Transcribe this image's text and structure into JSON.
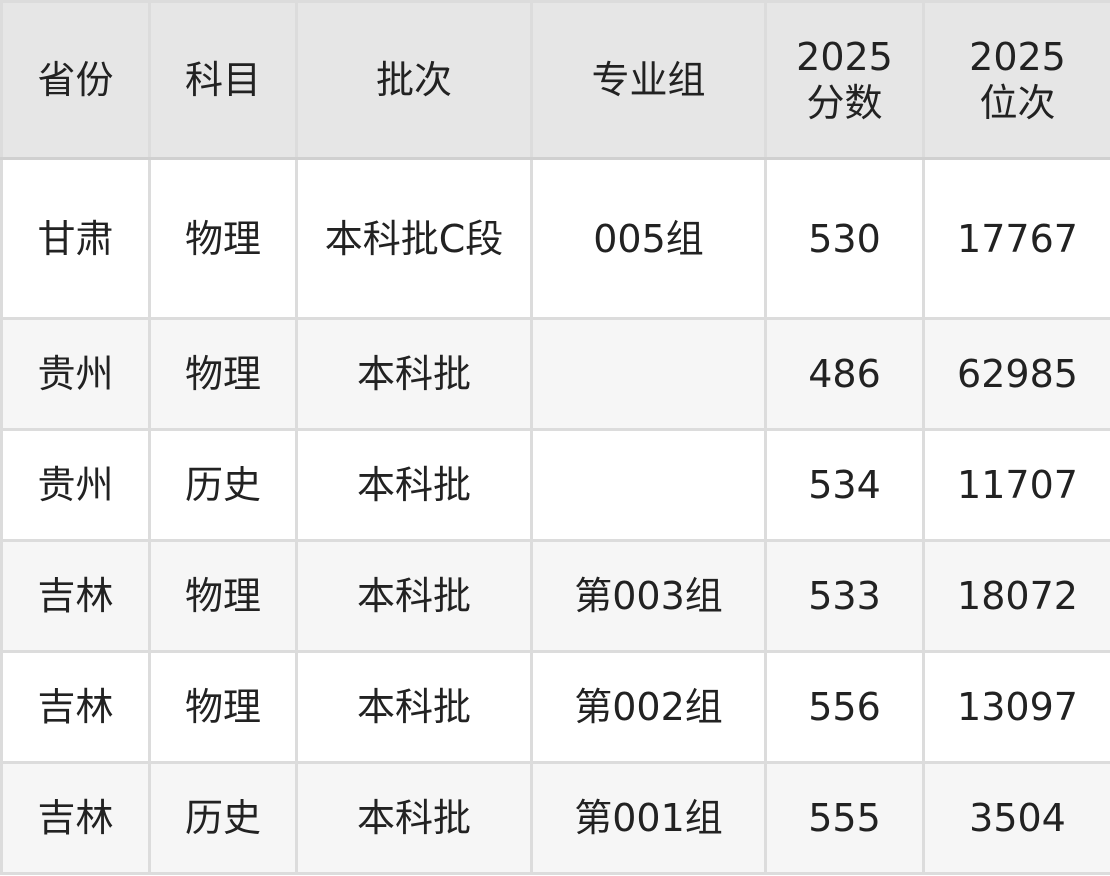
{
  "table": {
    "headers": [
      "省份",
      "科目",
      "批次",
      "专业组",
      "2025\n分数",
      "2025\n位次"
    ],
    "rows": [
      [
        "甘肃",
        "物理",
        "本科批C段",
        "005组",
        "530",
        "17767"
      ],
      [
        "贵州",
        "物理",
        "本科批",
        "",
        "486",
        "62985"
      ],
      [
        "贵州",
        "历史",
        "本科批",
        "",
        "534",
        "11707"
      ],
      [
        "吉林",
        "物理",
        "本科批",
        "第003组",
        "533",
        "18072"
      ],
      [
        "吉林",
        "物理",
        "本科批",
        "第002组",
        "556",
        "13097"
      ],
      [
        "吉林",
        "历史",
        "本科批",
        "第001组",
        "555",
        "3504"
      ]
    ]
  },
  "colors": {
    "header_bg": "#e6e6e6",
    "alt_row_bg": "#f6f6f6",
    "border": "#dcdcdc"
  }
}
